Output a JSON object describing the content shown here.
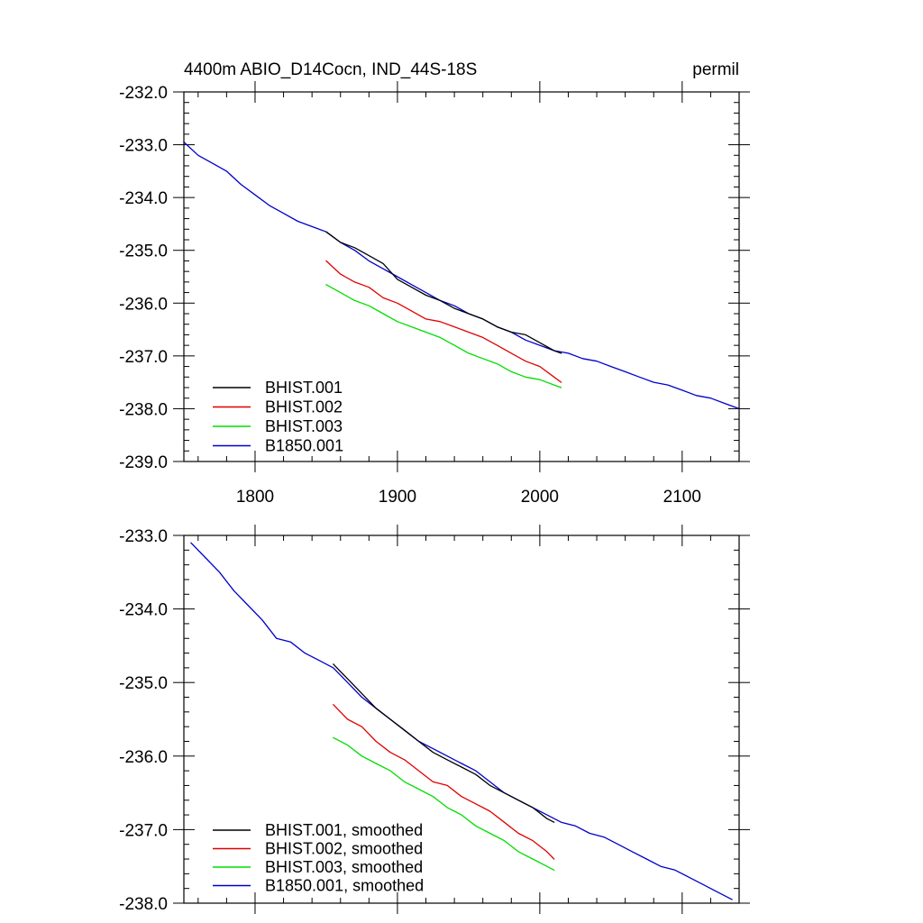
{
  "colors": {
    "BHIST.001": "#000000",
    "BHIST.002": "#e00000",
    "BHIST.003": "#00dd00",
    "B1850.001": "#0000cc"
  },
  "chart_data": [
    {
      "type": "line",
      "panel": "top",
      "title_left": "4400m ABIO_D14Cocn, IND_44S-18S",
      "title_right": "permil",
      "xlabel": "",
      "ylabel": "",
      "xlim": [
        1750,
        2140
      ],
      "ylim": [
        -239.0,
        -232.0
      ],
      "xticks": [
        1800,
        1900,
        2000,
        2100
      ],
      "xtick_labels": [
        "1800",
        "1900",
        "2000",
        "2100"
      ],
      "yticks": [
        -232.0,
        -233.0,
        -234.0,
        -235.0,
        -236.0,
        -237.0,
        -238.0,
        -239.0
      ],
      "ytick_labels": [
        "-232.0",
        "-233.0",
        "-234.0",
        "-235.0",
        "-236.0",
        "-237.0",
        "-238.0",
        "-239.0"
      ],
      "legend_position": "bottom-left",
      "series": [
        {
          "name": "BHIST.001",
          "label": "BHIST.001",
          "x": [
            1850,
            1860,
            1870,
            1880,
            1890,
            1900,
            1910,
            1920,
            1930,
            1940,
            1950,
            1960,
            1970,
            1980,
            1990,
            2000,
            2010,
            2015
          ],
          "y": [
            -234.65,
            -234.85,
            -234.95,
            -235.1,
            -235.25,
            -235.55,
            -235.7,
            -235.85,
            -235.95,
            -236.1,
            -236.2,
            -236.3,
            -236.45,
            -236.55,
            -236.6,
            -236.75,
            -236.9,
            -236.95
          ]
        },
        {
          "name": "BHIST.002",
          "label": "BHIST.002",
          "x": [
            1850,
            1860,
            1870,
            1880,
            1890,
            1900,
            1910,
            1920,
            1930,
            1940,
            1950,
            1960,
            1970,
            1980,
            1990,
            2000,
            2010,
            2015
          ],
          "y": [
            -235.2,
            -235.45,
            -235.6,
            -235.7,
            -235.9,
            -236.0,
            -236.15,
            -236.3,
            -236.35,
            -236.45,
            -236.55,
            -236.65,
            -236.8,
            -236.95,
            -237.1,
            -237.2,
            -237.4,
            -237.5
          ]
        },
        {
          "name": "BHIST.003",
          "label": "BHIST.003",
          "x": [
            1850,
            1860,
            1870,
            1880,
            1890,
            1900,
            1910,
            1920,
            1930,
            1940,
            1950,
            1960,
            1970,
            1980,
            1990,
            2000,
            2010,
            2015
          ],
          "y": [
            -235.65,
            -235.8,
            -235.95,
            -236.05,
            -236.2,
            -236.35,
            -236.45,
            -236.55,
            -236.65,
            -236.8,
            -236.95,
            -237.05,
            -237.15,
            -237.3,
            -237.4,
            -237.45,
            -237.55,
            -237.6
          ]
        },
        {
          "name": "B1850.001",
          "label": "B1850.001",
          "x": [
            1750,
            1760,
            1770,
            1780,
            1790,
            1800,
            1810,
            1820,
            1830,
            1840,
            1850,
            1860,
            1870,
            1880,
            1890,
            1900,
            1910,
            1920,
            1930,
            1940,
            1950,
            1960,
            1970,
            1980,
            1990,
            2000,
            2010,
            2020,
            2030,
            2040,
            2050,
            2060,
            2070,
            2080,
            2090,
            2100,
            2110,
            2120,
            2130,
            2140
          ],
          "y": [
            -232.95,
            -233.2,
            -233.35,
            -233.5,
            -233.75,
            -233.95,
            -234.15,
            -234.3,
            -234.45,
            -234.55,
            -234.65,
            -234.85,
            -235.0,
            -235.2,
            -235.35,
            -235.5,
            -235.65,
            -235.8,
            -235.95,
            -236.05,
            -236.2,
            -236.3,
            -236.45,
            -236.55,
            -236.7,
            -236.8,
            -236.9,
            -236.95,
            -237.05,
            -237.1,
            -237.2,
            -237.3,
            -237.4,
            -237.5,
            -237.55,
            -237.65,
            -237.75,
            -237.8,
            -237.9,
            -238.0
          ]
        }
      ]
    },
    {
      "type": "line",
      "panel": "bottom",
      "xlabel": "",
      "ylabel": "",
      "xlim": [
        1750,
        2140
      ],
      "ylim": [
        -238.0,
        -233.0
      ],
      "xticks": [
        1800,
        1900,
        2000,
        2100
      ],
      "yticks": [
        -233.0,
        -234.0,
        -235.0,
        -236.0,
        -237.0,
        -238.0
      ],
      "ytick_labels": [
        "-233.0",
        "-234.0",
        "-235.0",
        "-236.0",
        "-237.0",
        "-238.0"
      ],
      "legend_position": "bottom-left",
      "series": [
        {
          "name": "BHIST.001",
          "label": "BHIST.001, smoothed",
          "x": [
            1855,
            1865,
            1875,
            1885,
            1895,
            1905,
            1915,
            1925,
            1935,
            1945,
            1955,
            1965,
            1975,
            1985,
            1995,
            2005,
            2010
          ],
          "y": [
            -234.75,
            -234.95,
            -235.15,
            -235.35,
            -235.5,
            -235.65,
            -235.8,
            -235.95,
            -236.05,
            -236.15,
            -236.25,
            -236.4,
            -236.5,
            -236.6,
            -236.7,
            -236.85,
            -236.9
          ]
        },
        {
          "name": "BHIST.002",
          "label": "BHIST.002, smoothed",
          "x": [
            1855,
            1865,
            1875,
            1885,
            1895,
            1905,
            1915,
            1925,
            1935,
            1945,
            1955,
            1965,
            1975,
            1985,
            1995,
            2005,
            2010
          ],
          "y": [
            -235.3,
            -235.5,
            -235.6,
            -235.8,
            -235.95,
            -236.05,
            -236.2,
            -236.35,
            -236.4,
            -236.55,
            -236.65,
            -236.75,
            -236.9,
            -237.05,
            -237.15,
            -237.3,
            -237.4
          ]
        },
        {
          "name": "BHIST.003",
          "label": "BHIST.003, smoothed",
          "x": [
            1855,
            1865,
            1875,
            1885,
            1895,
            1905,
            1915,
            1925,
            1935,
            1945,
            1955,
            1965,
            1975,
            1985,
            1995,
            2005,
            2010
          ],
          "y": [
            -235.75,
            -235.85,
            -236.0,
            -236.1,
            -236.2,
            -236.35,
            -236.45,
            -236.55,
            -236.7,
            -236.8,
            -236.95,
            -237.05,
            -237.15,
            -237.3,
            -237.4,
            -237.5,
            -237.55
          ]
        },
        {
          "name": "B1850.001",
          "label": "B1850.001, smoothed",
          "x": [
            1755,
            1765,
            1775,
            1785,
            1795,
            1805,
            1815,
            1825,
            1835,
            1845,
            1855,
            1865,
            1875,
            1885,
            1895,
            1905,
            1915,
            1925,
            1935,
            1945,
            1955,
            1965,
            1975,
            1985,
            1995,
            2005,
            2015,
            2025,
            2035,
            2045,
            2055,
            2065,
            2075,
            2085,
            2095,
            2105,
            2115,
            2125,
            2135
          ],
          "y": [
            -233.1,
            -233.3,
            -233.5,
            -233.75,
            -233.95,
            -234.15,
            -234.4,
            -234.45,
            -234.6,
            -234.7,
            -234.8,
            -235.0,
            -235.2,
            -235.35,
            -235.5,
            -235.65,
            -235.8,
            -235.9,
            -236.0,
            -236.1,
            -236.2,
            -236.35,
            -236.5,
            -236.6,
            -236.7,
            -236.8,
            -236.9,
            -236.95,
            -237.05,
            -237.1,
            -237.2,
            -237.3,
            -237.4,
            -237.5,
            -237.55,
            -237.65,
            -237.75,
            -237.85,
            -237.95
          ]
        }
      ]
    }
  ]
}
